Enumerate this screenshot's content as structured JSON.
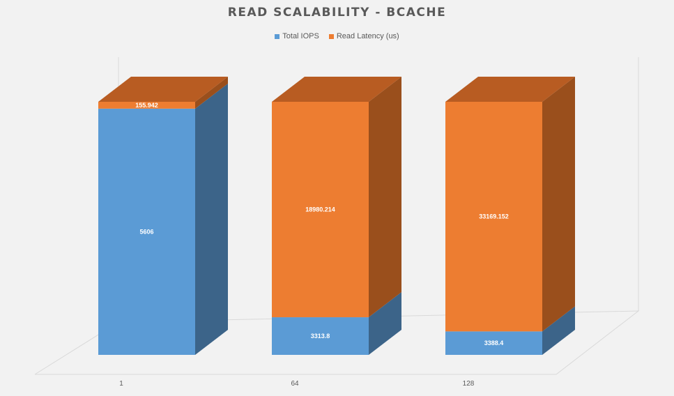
{
  "chart_data": {
    "type": "bar",
    "stacked": true,
    "three_d": true,
    "title": "READ SCALABILITY - BCACHE",
    "categories": [
      "1",
      "64",
      "128"
    ],
    "series": [
      {
        "name": "Total IOPS",
        "color": "#5b9bd5",
        "side_color": "#3c6489",
        "top_color": "#4a7fb0",
        "values": [
          5606,
          3313.8,
          3388.4
        ],
        "labels": [
          "5606",
          "3313.8",
          "3388.4"
        ]
      },
      {
        "name": "Read Latency (us)",
        "color": "#ed7d31",
        "side_color": "#9a4f1c",
        "top_color": "#b85c22",
        "values": [
          155.942,
          18980.214,
          33169.152
        ],
        "labels": [
          "155.942",
          "18980.214",
          "33169.152"
        ]
      }
    ],
    "normalized_to_100_percent": true,
    "legend_position": "top",
    "gridlines": false
  }
}
